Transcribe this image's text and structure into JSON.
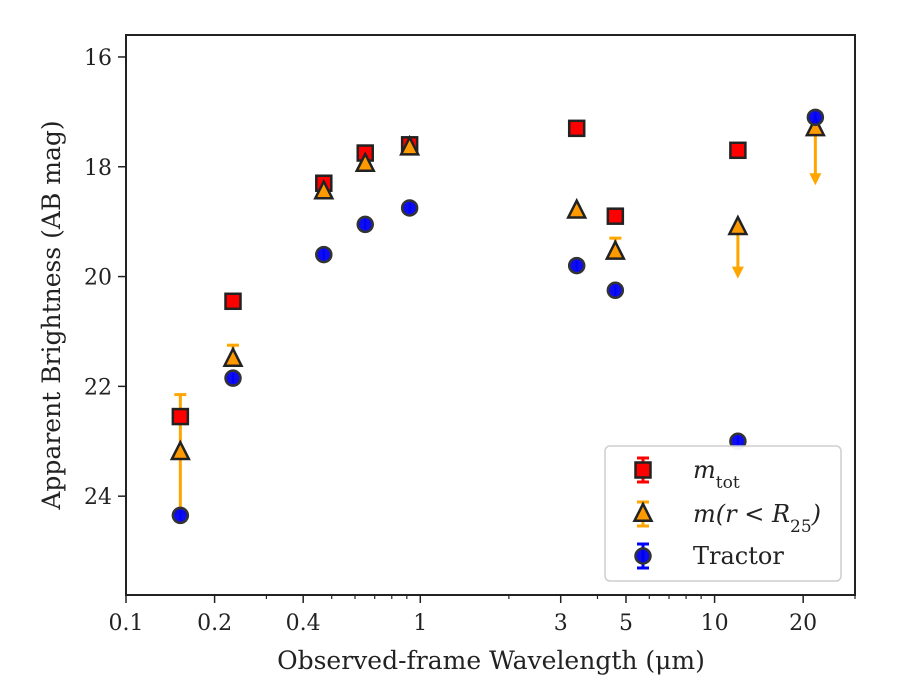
{
  "chart_data": {
    "type": "scatter",
    "xlabel": "Observed-frame Wavelength (μm)",
    "ylabel": "Apparent Brightness (AB mag)",
    "x_scale": "log",
    "xlim": [
      0.1,
      30
    ],
    "ylim": [
      25.8,
      15.6
    ],
    "y_inverted": true,
    "x_ticks": [
      0.1,
      0.2,
      0.4,
      1,
      3,
      5,
      10,
      20
    ],
    "x_tick_labels": [
      "0.1",
      "0.2",
      "0.4",
      "1",
      "3",
      "5",
      "10",
      "20"
    ],
    "y_ticks": [
      16,
      18,
      20,
      22,
      24
    ],
    "y_tick_labels": [
      "16",
      "18",
      "20",
      "22",
      "24"
    ],
    "grid": false,
    "legend_position": "bottom-right",
    "series": [
      {
        "name": "m_tot",
        "label_main": "m",
        "label_sub": "tot",
        "marker": "square",
        "color": "#ff0000",
        "edgecolor": "#222222",
        "errcolor": "#ff0000",
        "points": [
          {
            "x": 0.153,
            "y": 22.55
          },
          {
            "x": 0.231,
            "y": 20.45
          },
          {
            "x": 0.47,
            "y": 18.3
          },
          {
            "x": 0.65,
            "y": 17.75
          },
          {
            "x": 0.92,
            "y": 17.6
          },
          {
            "x": 3.4,
            "y": 17.3
          },
          {
            "x": 4.6,
            "y": 18.9
          },
          {
            "x": 12.0,
            "y": 17.7
          }
        ]
      },
      {
        "name": "m(r < R25)",
        "label_main": "m(r < R",
        "label_sub": "25",
        "label_end": ")",
        "marker": "triangle",
        "color": "#ff9900",
        "edgecolor": "#222222",
        "errcolor": "#ffa500",
        "points": [
          {
            "x": 0.153,
            "y": 23.2,
            "err_low": 24.3,
            "err_high": 22.15
          },
          {
            "x": 0.231,
            "y": 21.5,
            "err_high": 21.25
          },
          {
            "x": 0.47,
            "y": 18.45
          },
          {
            "x": 0.65,
            "y": 17.95
          },
          {
            "x": 0.92,
            "y": 17.65
          },
          {
            "x": 3.4,
            "y": 18.8
          },
          {
            "x": 4.6,
            "y": 19.55,
            "err_high": 19.3
          },
          {
            "x": 12.0,
            "y": 19.1,
            "upper_limit": true,
            "arrow_to": 20.0
          },
          {
            "x": 22.0,
            "y": 17.3,
            "upper_limit": true,
            "arrow_to": 18.3
          }
        ]
      },
      {
        "name": "Tractor",
        "marker": "circle",
        "color": "#0000ee",
        "edgecolor": "#333333",
        "errcolor": "#0000ff",
        "points": [
          {
            "x": 0.153,
            "y": 24.35
          },
          {
            "x": 0.231,
            "y": 21.85
          },
          {
            "x": 0.47,
            "y": 19.6
          },
          {
            "x": 0.65,
            "y": 19.05
          },
          {
            "x": 0.92,
            "y": 18.75
          },
          {
            "x": 3.4,
            "y": 19.8
          },
          {
            "x": 4.6,
            "y": 20.25
          },
          {
            "x": 12.0,
            "y": 23.0
          },
          {
            "x": 22.0,
            "y": 17.1
          }
        ]
      }
    ]
  }
}
